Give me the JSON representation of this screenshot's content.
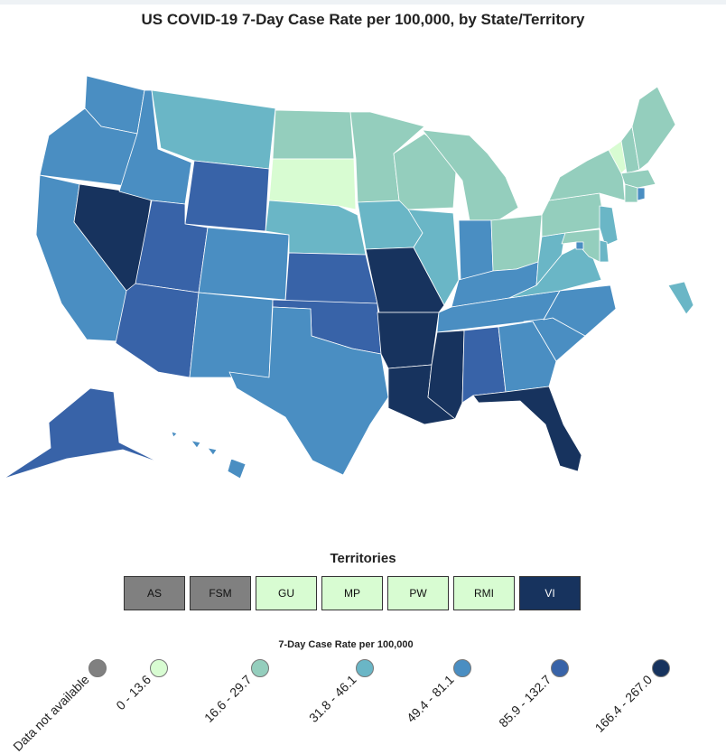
{
  "title": "US COVID-19 7-Day Case Rate per 100,000, by State/Territory",
  "colors": {
    "na": "#808080",
    "c1": "#d8fcd2",
    "c2": "#94cebd",
    "c3": "#6ab6c6",
    "c4": "#4a8ec2",
    "c5": "#3863a8",
    "c6": "#17335e"
  },
  "states": [
    {
      "name": "WA",
      "bin": "c4"
    },
    {
      "name": "OR",
      "bin": "c4"
    },
    {
      "name": "CA",
      "bin": "c4"
    },
    {
      "name": "NV",
      "bin": "c6"
    },
    {
      "name": "ID",
      "bin": "c4"
    },
    {
      "name": "MT",
      "bin": "c3"
    },
    {
      "name": "WY",
      "bin": "c5"
    },
    {
      "name": "UT",
      "bin": "c5"
    },
    {
      "name": "AZ",
      "bin": "c5"
    },
    {
      "name": "CO",
      "bin": "c4"
    },
    {
      "name": "NM",
      "bin": "c4"
    },
    {
      "name": "ND",
      "bin": "c2"
    },
    {
      "name": "SD",
      "bin": "c1"
    },
    {
      "name": "NE",
      "bin": "c3"
    },
    {
      "name": "KS",
      "bin": "c5"
    },
    {
      "name": "OK",
      "bin": "c5"
    },
    {
      "name": "TX",
      "bin": "c4"
    },
    {
      "name": "MN",
      "bin": "c2"
    },
    {
      "name": "IA",
      "bin": "c3"
    },
    {
      "name": "MO",
      "bin": "c6"
    },
    {
      "name": "AR",
      "bin": "c6"
    },
    {
      "name": "LA",
      "bin": "c6"
    },
    {
      "name": "WI",
      "bin": "c2"
    },
    {
      "name": "IL",
      "bin": "c3"
    },
    {
      "name": "MI",
      "bin": "c2"
    },
    {
      "name": "IN",
      "bin": "c4"
    },
    {
      "name": "OH",
      "bin": "c2"
    },
    {
      "name": "KY",
      "bin": "c4"
    },
    {
      "name": "TN",
      "bin": "c4"
    },
    {
      "name": "MS",
      "bin": "c6"
    },
    {
      "name": "AL",
      "bin": "c5"
    },
    {
      "name": "GA",
      "bin": "c4"
    },
    {
      "name": "FL",
      "bin": "c6"
    },
    {
      "name": "SC",
      "bin": "c4"
    },
    {
      "name": "NC",
      "bin": "c4"
    },
    {
      "name": "VA",
      "bin": "c3"
    },
    {
      "name": "WV",
      "bin": "c3"
    },
    {
      "name": "PA",
      "bin": "c2"
    },
    {
      "name": "NY",
      "bin": "c2"
    },
    {
      "name": "VT",
      "bin": "c1"
    },
    {
      "name": "NH",
      "bin": "c2"
    },
    {
      "name": "ME",
      "bin": "c2"
    },
    {
      "name": "MA",
      "bin": "c2"
    },
    {
      "name": "CT",
      "bin": "c2"
    },
    {
      "name": "RI",
      "bin": "c4"
    },
    {
      "name": "NJ",
      "bin": "c3"
    },
    {
      "name": "DE",
      "bin": "c3"
    },
    {
      "name": "MD",
      "bin": "c2"
    },
    {
      "name": "DC",
      "bin": "c4"
    },
    {
      "name": "AK",
      "bin": "c5"
    },
    {
      "name": "HI",
      "bin": "c4"
    },
    {
      "name": "PR",
      "bin": "c3"
    }
  ],
  "territories": {
    "title": "Territories",
    "items": [
      {
        "label": "AS",
        "bin": "na"
      },
      {
        "label": "FSM",
        "bin": "na"
      },
      {
        "label": "GU",
        "bin": "c1"
      },
      {
        "label": "MP",
        "bin": "c1"
      },
      {
        "label": "PW",
        "bin": "c1"
      },
      {
        "label": "RMI",
        "bin": "c1"
      },
      {
        "label": "VI",
        "bin": "c6"
      }
    ]
  },
  "legend": {
    "title": "7-Day Case Rate per 100,000",
    "items": [
      {
        "label": "Data not available",
        "bin": "na"
      },
      {
        "label": "0 - 13.6",
        "bin": "c1"
      },
      {
        "label": "16.6 - 29.7",
        "bin": "c2"
      },
      {
        "label": "31.8 - 46.1",
        "bin": "c3"
      },
      {
        "label": "49.4 - 81.1",
        "bin": "c4"
      },
      {
        "label": "85.9 - 132.7",
        "bin": "c5"
      },
      {
        "label": "166.4 - 267.0",
        "bin": "c6"
      }
    ]
  }
}
